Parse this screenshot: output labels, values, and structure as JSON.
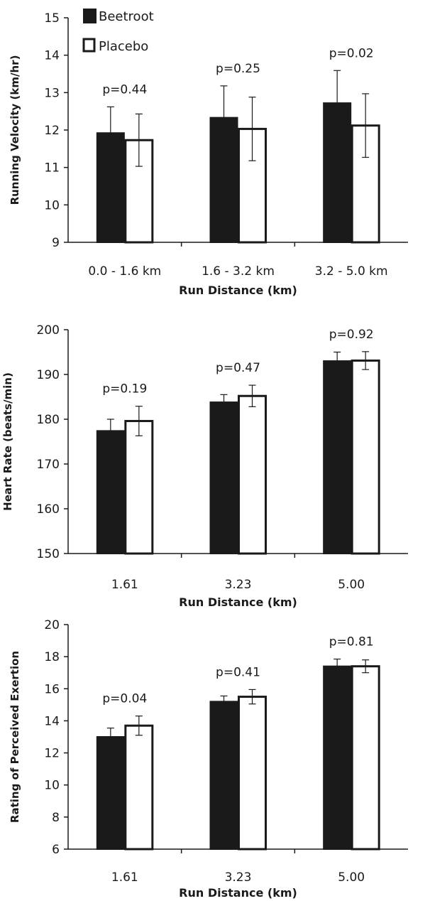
{
  "legend": {
    "items": [
      {
        "label": "Beetroot",
        "fill": "#1a1a1a"
      },
      {
        "label": "Placebo",
        "fill": "#ffffff"
      }
    ]
  },
  "colors": {
    "beetroot": "#1a1a1a",
    "placebo": "#ffffff",
    "stroke": "#1a1a1a"
  },
  "chart_data": [
    {
      "type": "bar",
      "ylabel": "Running Velocity (km/hr)",
      "xlabel": "Run Distance (km)",
      "categories": [
        "0.0 - 1.6 km",
        "1.6 - 3.2 km",
        "3.2 - 5.0 km"
      ],
      "ylim": [
        9,
        15
      ],
      "yticks": [
        9,
        10,
        11,
        12,
        13,
        14,
        15
      ],
      "series": [
        {
          "name": "Beetroot",
          "values": [
            11.92,
            12.33,
            12.72
          ],
          "errors": [
            0.7,
            0.85,
            0.87
          ]
        },
        {
          "name": "Placebo",
          "values": [
            11.73,
            12.03,
            12.12
          ],
          "errors": [
            0.7,
            0.85,
            0.85
          ]
        }
      ],
      "annotations": [
        "p=0.44",
        "p=0.25",
        "p=0.02"
      ],
      "legend": "top-left"
    },
    {
      "type": "bar",
      "ylabel": "Heart Rate (beats/min)",
      "xlabel": "Run Distance (km)",
      "categories": [
        "1.61",
        "3.23",
        "5.00"
      ],
      "ylim": [
        150,
        200
      ],
      "yticks": [
        150,
        160,
        170,
        180,
        190,
        200
      ],
      "series": [
        {
          "name": "Beetroot",
          "values": [
            177.4,
            183.8,
            193.0
          ],
          "errors": [
            2.6,
            1.7,
            2.0
          ]
        },
        {
          "name": "Placebo",
          "values": [
            179.6,
            185.2,
            193.1
          ],
          "errors": [
            3.3,
            2.4,
            2.0
          ]
        }
      ],
      "annotations": [
        "p=0.19",
        "p=0.47",
        "p=0.92"
      ]
    },
    {
      "type": "bar",
      "ylabel": "Rating of Perceived Exertion",
      "xlabel": "Run Distance (km)",
      "categories": [
        "1.61",
        "3.23",
        "5.00"
      ],
      "ylim": [
        6,
        20
      ],
      "yticks": [
        6,
        8,
        10,
        12,
        14,
        16,
        18,
        20
      ],
      "series": [
        {
          "name": "Beetroot",
          "values": [
            13.0,
            15.2,
            17.4
          ],
          "errors": [
            0.55,
            0.35,
            0.45
          ]
        },
        {
          "name": "Placebo",
          "values": [
            13.7,
            15.5,
            17.4
          ],
          "errors": [
            0.6,
            0.45,
            0.4
          ]
        }
      ],
      "annotations": [
        "p=0.04",
        "p=0.41",
        "p=0.81"
      ]
    }
  ]
}
